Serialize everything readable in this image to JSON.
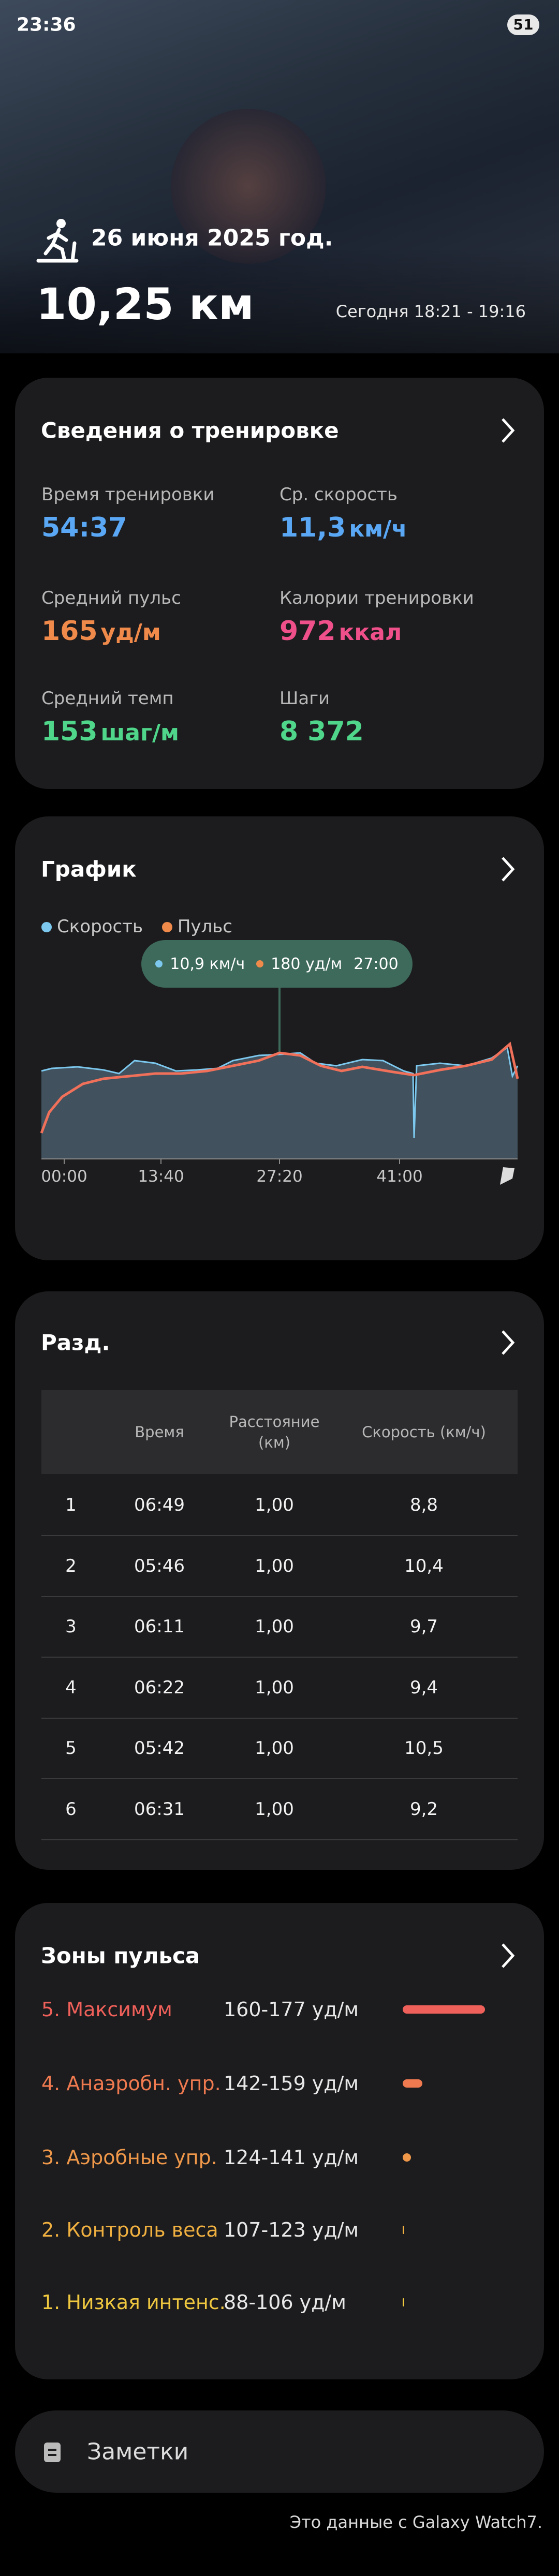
{
  "status_bar": {
    "time": "23:36",
    "battery": "51"
  },
  "header": {
    "date": "26 июня 2025 год.",
    "distance": "10,25 км",
    "time_range": "Сегодня 18:21 - 19:16"
  },
  "summary": {
    "title": "Сведения о тренировке",
    "stats": [
      {
        "label": "Время тренировки",
        "value": "54:37"
      },
      {
        "label": "Ср. скорость",
        "value": "11,3",
        "unit": "км/ч"
      },
      {
        "label": "Средний пульс",
        "value": "165",
        "unit": "уд/м"
      },
      {
        "label": "Калории тренировки",
        "value": "972",
        "unit": "ккал"
      },
      {
        "label": "Средний темп",
        "value": "153",
        "unit": "шаг/м"
      },
      {
        "label": "Шаги",
        "value": "8 372"
      }
    ]
  },
  "graph": {
    "title": "График",
    "legend": [
      "Скорость",
      "Пульс"
    ],
    "tooltip": {
      "speed": "10,9 км/ч",
      "pulse": "180 уд/м",
      "time": "27:00"
    },
    "x_labels": [
      "00:00",
      "13:40",
      "27:20",
      "41:00"
    ]
  },
  "splits": {
    "title": "Разд.",
    "columns": [
      "Время",
      "Расстояние (км)",
      "Скорость (км/ч)"
    ],
    "rows": [
      [
        "1",
        "06:49",
        "1,00",
        "8,8"
      ],
      [
        "2",
        "05:46",
        "1,00",
        "10,4"
      ],
      [
        "3",
        "06:11",
        "1,00",
        "9,7"
      ],
      [
        "4",
        "06:22",
        "1,00",
        "9,4"
      ],
      [
        "5",
        "05:42",
        "1,00",
        "10,5"
      ],
      [
        "6",
        "06:31",
        "1,00",
        "9,2"
      ]
    ]
  },
  "heart_zones": {
    "title": "Зоны пульса",
    "zones": [
      {
        "name": "5. Максимум",
        "range": "160-177 уд/м"
      },
      {
        "name": "4. Анаэробн. упр.",
        "range": "142-159 уд/м"
      },
      {
        "name": "3. Аэробные упр.",
        "range": "124-141 уд/м"
      },
      {
        "name": "2. Контроль веса",
        "range": "107-123 уд/м"
      },
      {
        "name": "1. Низкая интенс.",
        "range": "88-106 уд/м"
      }
    ]
  },
  "notes": {
    "label": "Заметки"
  },
  "footer": "Это данные с Galaxy Watch7."
}
